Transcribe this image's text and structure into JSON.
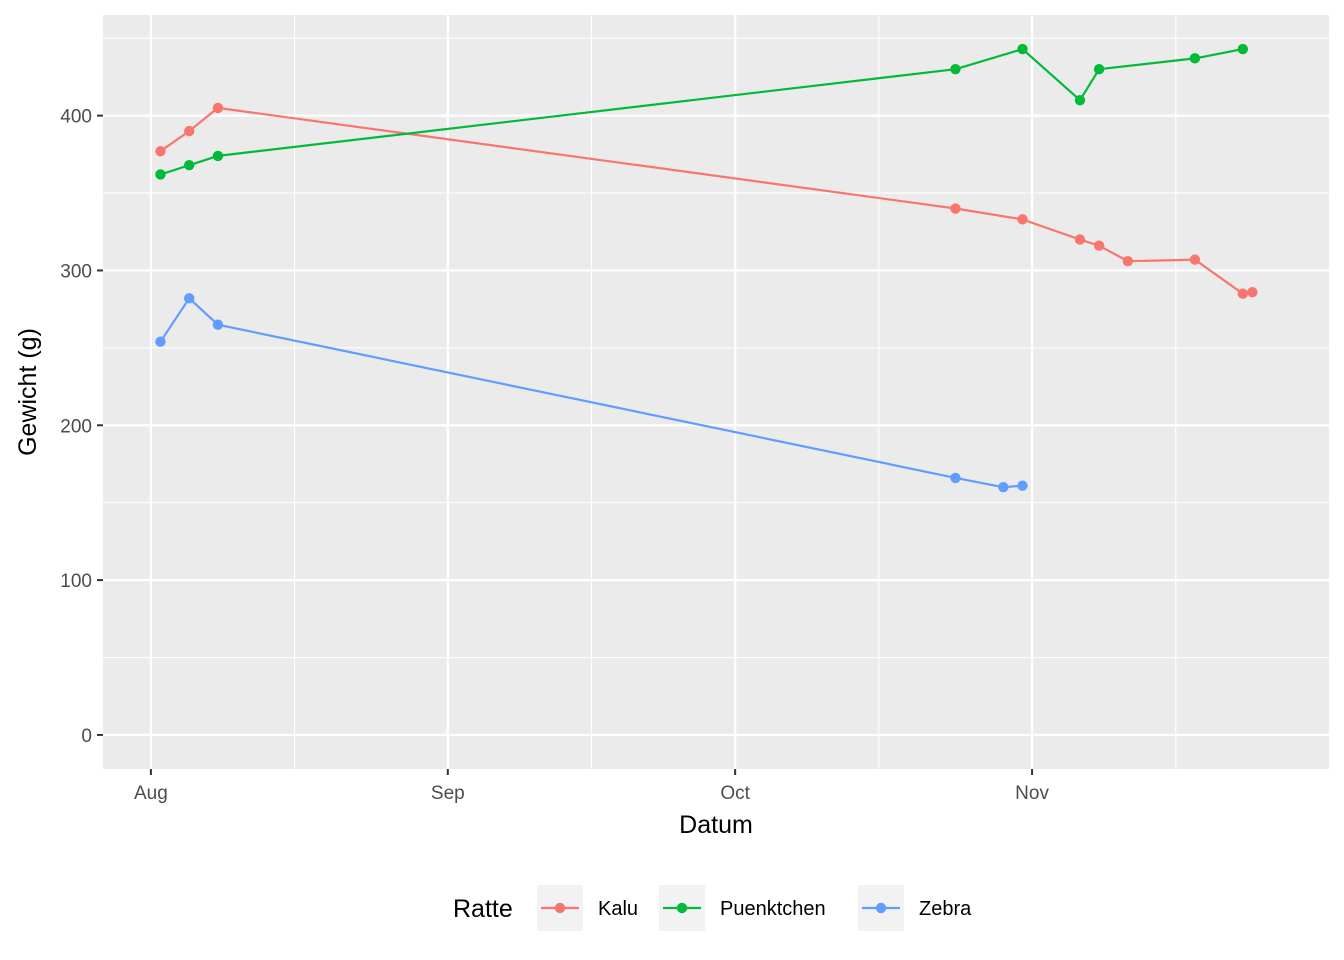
{
  "chart_data": {
    "type": "line",
    "xlabel": "Datum",
    "ylabel": "Gewicht (g)",
    "x_ticks": [
      {
        "date": "2023-08-01",
        "label": "Aug"
      },
      {
        "date": "2023-09-01",
        "label": "Sep"
      },
      {
        "date": "2023-10-01",
        "label": "Oct"
      },
      {
        "date": "2023-11-01",
        "label": "Nov"
      }
    ],
    "x_minor_ticks": [
      "2023-08-16",
      "2023-09-16",
      "2023-10-16",
      "2023-11-16"
    ],
    "xlim": [
      "2023-07-27",
      "2023-12-02"
    ],
    "y_ticks": [
      0,
      100,
      200,
      300,
      400
    ],
    "y_minor_ticks": [
      50,
      150,
      250,
      350,
      450
    ],
    "ylim": [
      -22,
      465
    ],
    "grid": true,
    "legend": {
      "title": "Ratte",
      "position": "bottom"
    },
    "series": [
      {
        "name": "Kalu",
        "color": "#F8766D",
        "points": [
          {
            "x": "2023-08-02",
            "y": 377
          },
          {
            "x": "2023-08-05",
            "y": 390
          },
          {
            "x": "2023-08-08",
            "y": 405
          },
          {
            "x": "2023-10-24",
            "y": 340
          },
          {
            "x": "2023-10-31",
            "y": 333
          },
          {
            "x": "2023-11-06",
            "y": 320
          },
          {
            "x": "2023-11-08",
            "y": 316
          },
          {
            "x": "2023-11-11",
            "y": 306
          },
          {
            "x": "2023-11-18",
            "y": 307
          },
          {
            "x": "2023-11-23",
            "y": 285
          },
          {
            "x": "2023-11-24",
            "y": 286
          }
        ]
      },
      {
        "name": "Puenktchen",
        "color": "#00BA38",
        "points": [
          {
            "x": "2023-08-02",
            "y": 362
          },
          {
            "x": "2023-08-05",
            "y": 368
          },
          {
            "x": "2023-08-08",
            "y": 374
          },
          {
            "x": "2023-10-24",
            "y": 430
          },
          {
            "x": "2023-10-31",
            "y": 443
          },
          {
            "x": "2023-11-06",
            "y": 410
          },
          {
            "x": "2023-11-08",
            "y": 430
          },
          {
            "x": "2023-11-18",
            "y": 437
          },
          {
            "x": "2023-11-23",
            "y": 443
          }
        ]
      },
      {
        "name": "Zebra",
        "color": "#619CFF",
        "points": [
          {
            "x": "2023-08-02",
            "y": 254
          },
          {
            "x": "2023-08-05",
            "y": 282
          },
          {
            "x": "2023-08-08",
            "y": 265
          },
          {
            "x": "2023-10-24",
            "y": 166
          },
          {
            "x": "2023-10-29",
            "y": 160
          },
          {
            "x": "2023-10-31",
            "y": 161
          }
        ]
      }
    ]
  }
}
